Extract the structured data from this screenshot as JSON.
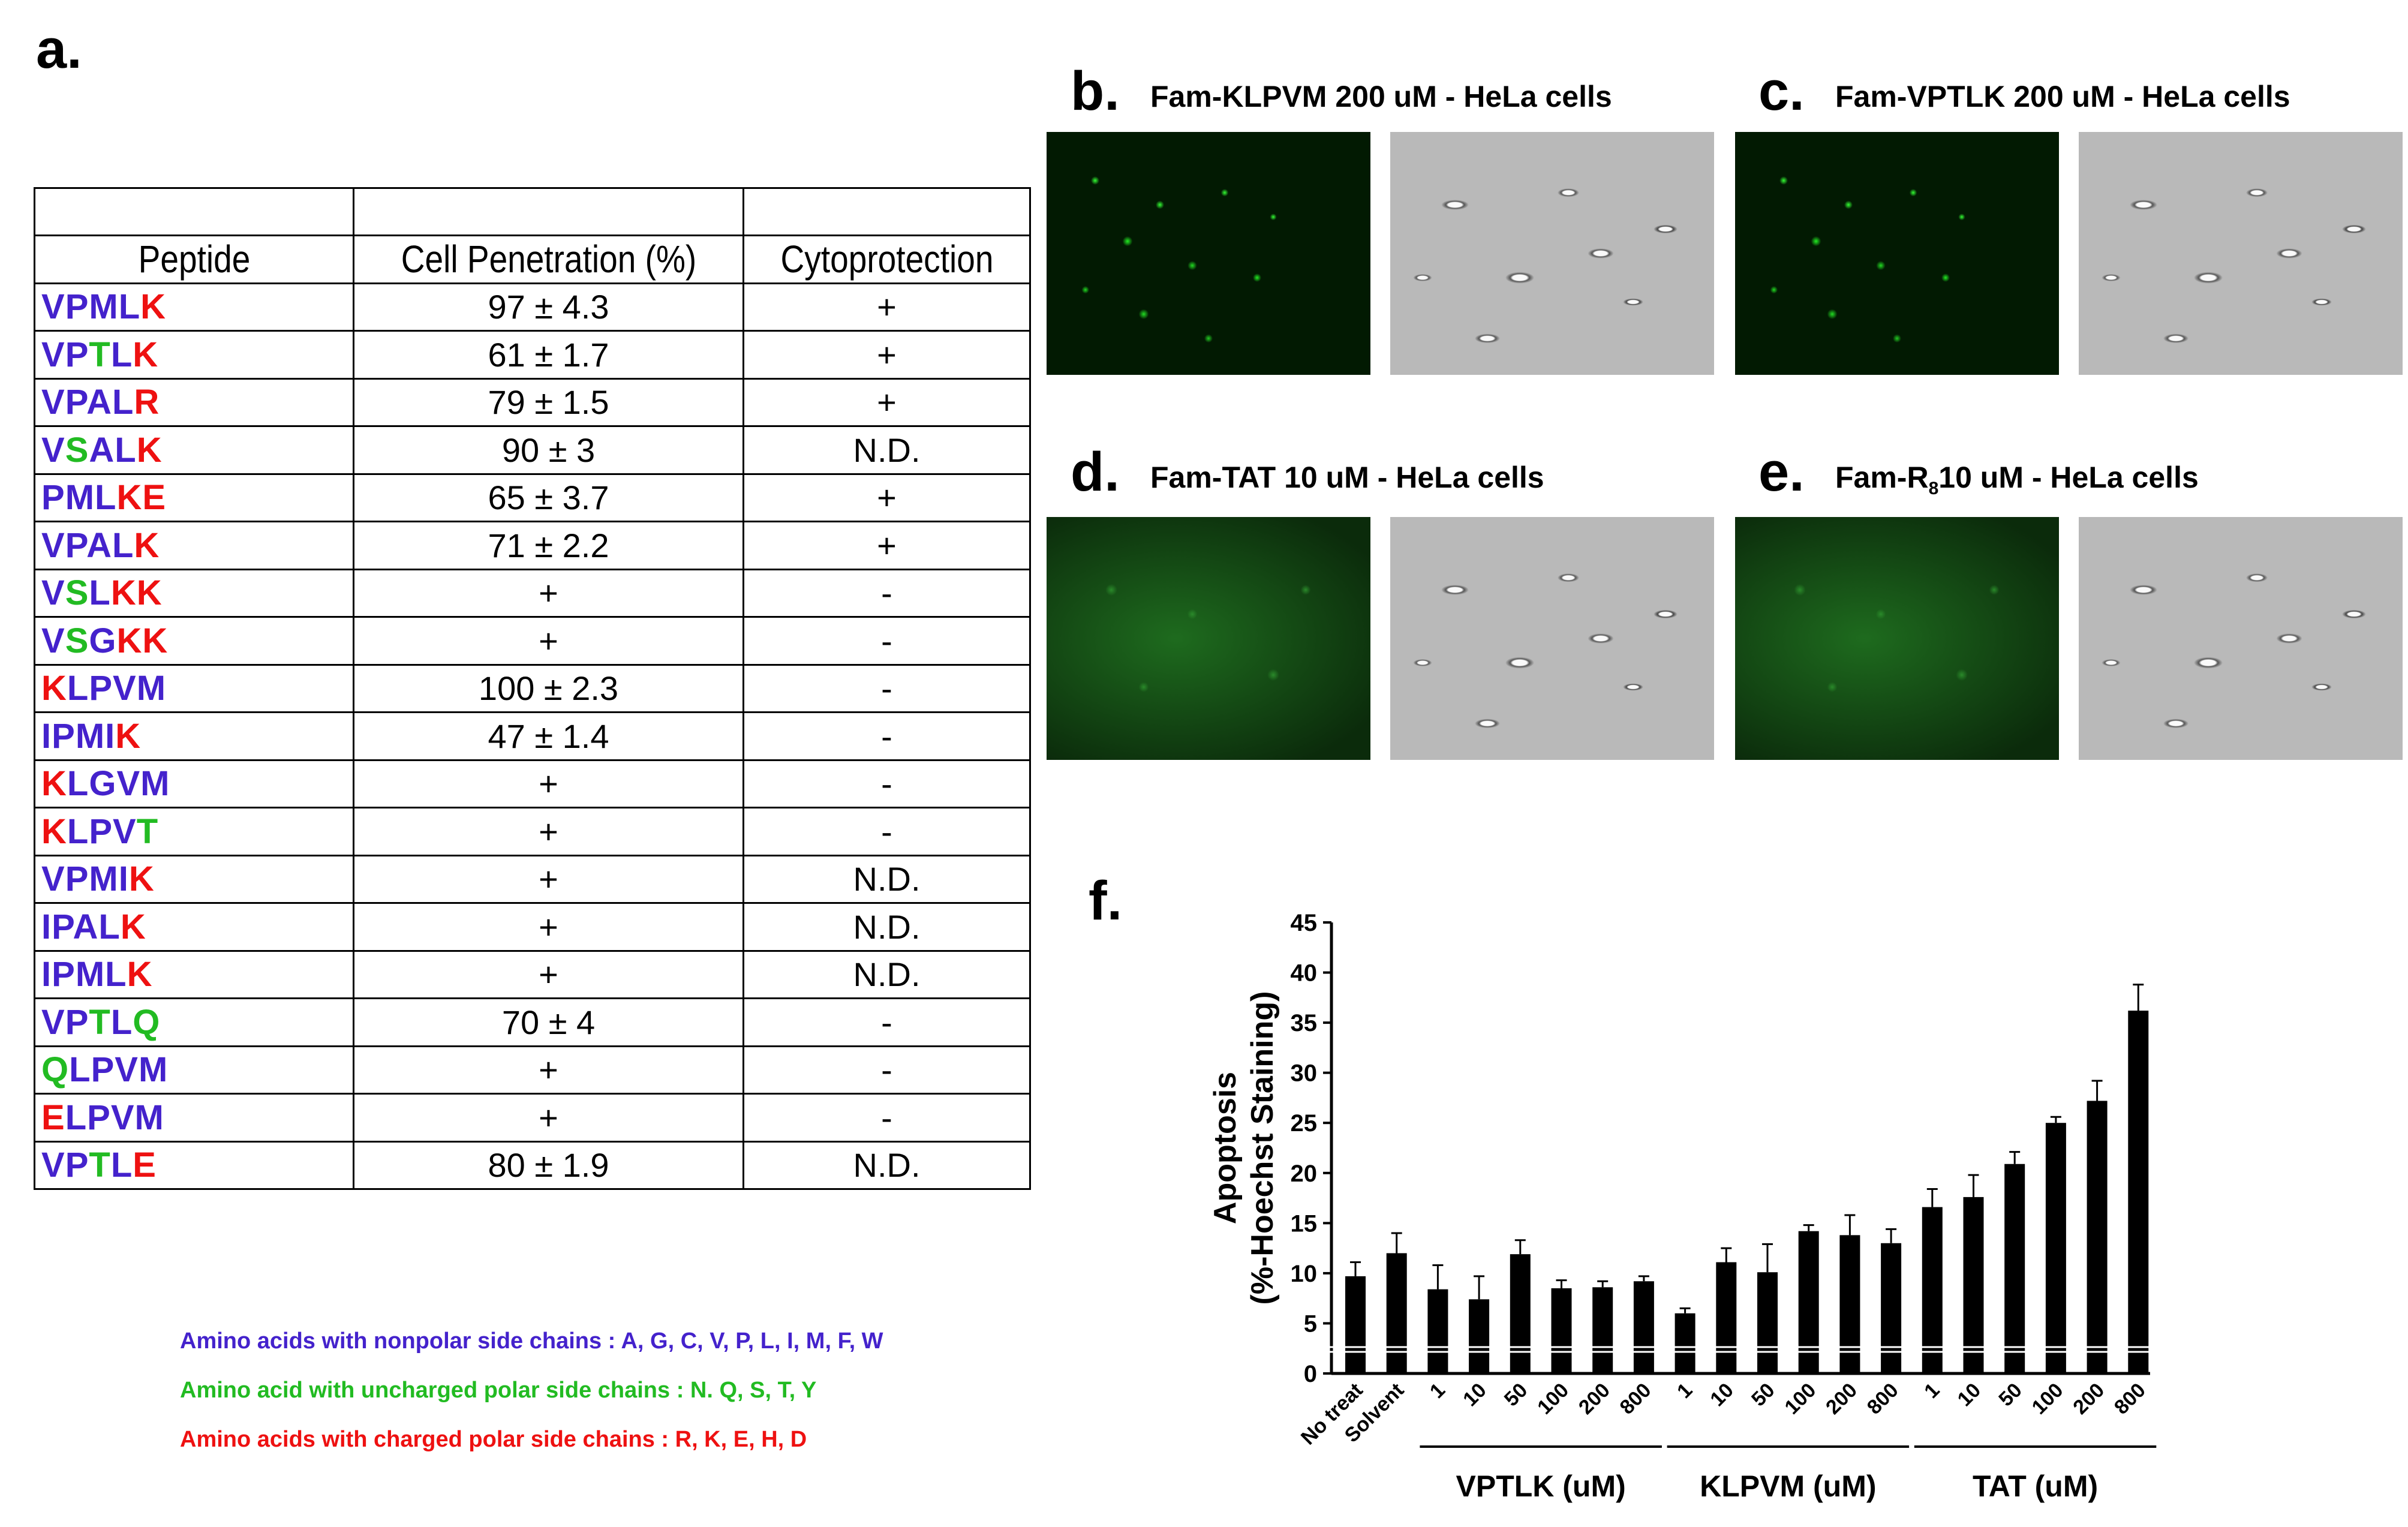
{
  "panels": {
    "a": "a.",
    "b": {
      "letter": "b.",
      "caption": "Fam-KLPVM 200 uM - HeLa cells"
    },
    "c": {
      "letter": "c.",
      "caption": "Fam-VPTLK 200 uM  - HeLa cells"
    },
    "d": {
      "letter": "d.",
      "caption": "Fam-TAT 10 uM - HeLa cells"
    },
    "e": {
      "letter": "e.",
      "caption_pre": "Fam-R",
      "caption_sub": "8",
      "caption_post": "10 uM - HeLa cells"
    },
    "f": "f."
  },
  "table": {
    "headers": [
      "Peptide",
      "Cell Penetration (%)",
      "Cytoprotection"
    ],
    "rows": [
      {
        "peptide": "VPMLK",
        "colors": "nnnnc",
        "penetration": "97 ± 4.3",
        "cyto": "+"
      },
      {
        "peptide": "VPTLK",
        "colors": "nnpnc",
        "penetration": "61 ± 1.7",
        "cyto": "+"
      },
      {
        "peptide": "VPALR",
        "colors": "nnnnc",
        "penetration": "79 ± 1.5",
        "cyto": "+"
      },
      {
        "peptide": "VSALK",
        "colors": "npnnc",
        "penetration": "90 ± 3",
        "cyto": "N.D."
      },
      {
        "peptide": "PMLKE",
        "colors": "nnncc",
        "penetration": "65 ± 3.7",
        "cyto": "+"
      },
      {
        "peptide": "VPALK",
        "colors": "nnnnc",
        "penetration": "71 ± 2.2",
        "cyto": "+"
      },
      {
        "peptide": "VSLKK",
        "colors": "npncc",
        "penetration": "+",
        "cyto": "-"
      },
      {
        "peptide": "VSGKK",
        "colors": "npncc",
        "penetration": "+",
        "cyto": "-"
      },
      {
        "peptide": "KLPVM",
        "colors": "cnnnn",
        "penetration": "100 ± 2.3",
        "cyto": "-"
      },
      {
        "peptide": "IPMIK",
        "colors": "nnnnc",
        "penetration": "47 ± 1.4",
        "cyto": "-"
      },
      {
        "peptide": "KLGVM",
        "colors": "cnnnn",
        "penetration": "+",
        "cyto": "-"
      },
      {
        "peptide": "KLPVT",
        "colors": "cnnnp",
        "penetration": "+",
        "cyto": "-"
      },
      {
        "peptide": "VPMIK",
        "colors": "nnnnc",
        "penetration": "+",
        "cyto": "N.D."
      },
      {
        "peptide": "IPALK",
        "colors": "nnnnc",
        "penetration": "+",
        "cyto": "N.D."
      },
      {
        "peptide": "IPMLK",
        "colors": "nnnnc",
        "penetration": "+",
        "cyto": "N.D."
      },
      {
        "peptide": "VPTLQ",
        "colors": "nnpnp",
        "penetration": "70 ± 4",
        "cyto": "-"
      },
      {
        "peptide": "QLPVM",
        "colors": "pnnnn",
        "penetration": "+",
        "cyto": "-"
      },
      {
        "peptide": "ELPVM",
        "colors": "cnnnn",
        "penetration": "+",
        "cyto": "-"
      },
      {
        "peptide": "VPTLE",
        "colors": "nnpnc",
        "penetration": "80 ± 1.9",
        "cyto": "N.D."
      }
    ]
  },
  "legend": {
    "nonpolar": "Amino acids with nonpolar side chains : A, G, C, V, P, L, I, M, F, W",
    "uncharged": "Amino acid with uncharged polar side chains : N. Q, S, T, Y",
    "charged": "Amino acids with charged polar side chains : R, K, E, H, D"
  },
  "colors": {
    "nonpolar": "#4422cc",
    "uncharged": "#22bb22",
    "charged": "#ee1111"
  },
  "chart_data": {
    "type": "bar",
    "ylabel_line1": "Apoptosis",
    "ylabel_line2": "(%-Hoechst Staining)",
    "ylim": [
      0,
      45
    ],
    "yticks": [
      0,
      5,
      10,
      15,
      20,
      25,
      30,
      35,
      40,
      45
    ],
    "categories": [
      "No treat",
      "Solvent",
      "1",
      "10",
      "50",
      "100",
      "200",
      "800",
      "1",
      "10",
      "50",
      "100",
      "200",
      "800",
      "1",
      "10",
      "50",
      "100",
      "200",
      "800"
    ],
    "values": [
      9.7,
      12.0,
      8.4,
      7.4,
      11.9,
      8.5,
      8.6,
      9.2,
      6.0,
      11.1,
      10.1,
      14.2,
      13.8,
      13.0,
      16.6,
      17.6,
      20.9,
      25.0,
      27.2,
      36.2
    ],
    "errors": [
      1.4,
      2.0,
      2.4,
      2.3,
      1.4,
      0.8,
      0.6,
      0.5,
      0.5,
      1.4,
      2.8,
      0.6,
      2.0,
      1.4,
      1.8,
      2.2,
      1.2,
      0.6,
      2.0,
      2.6
    ],
    "groups": [
      {
        "label": "VPTLK (uM)",
        "start": 2,
        "end": 7
      },
      {
        "label": "KLPVM (uM)",
        "start": 8,
        "end": 13
      },
      {
        "label": "TAT (uM)",
        "start": 14,
        "end": 19
      }
    ]
  }
}
